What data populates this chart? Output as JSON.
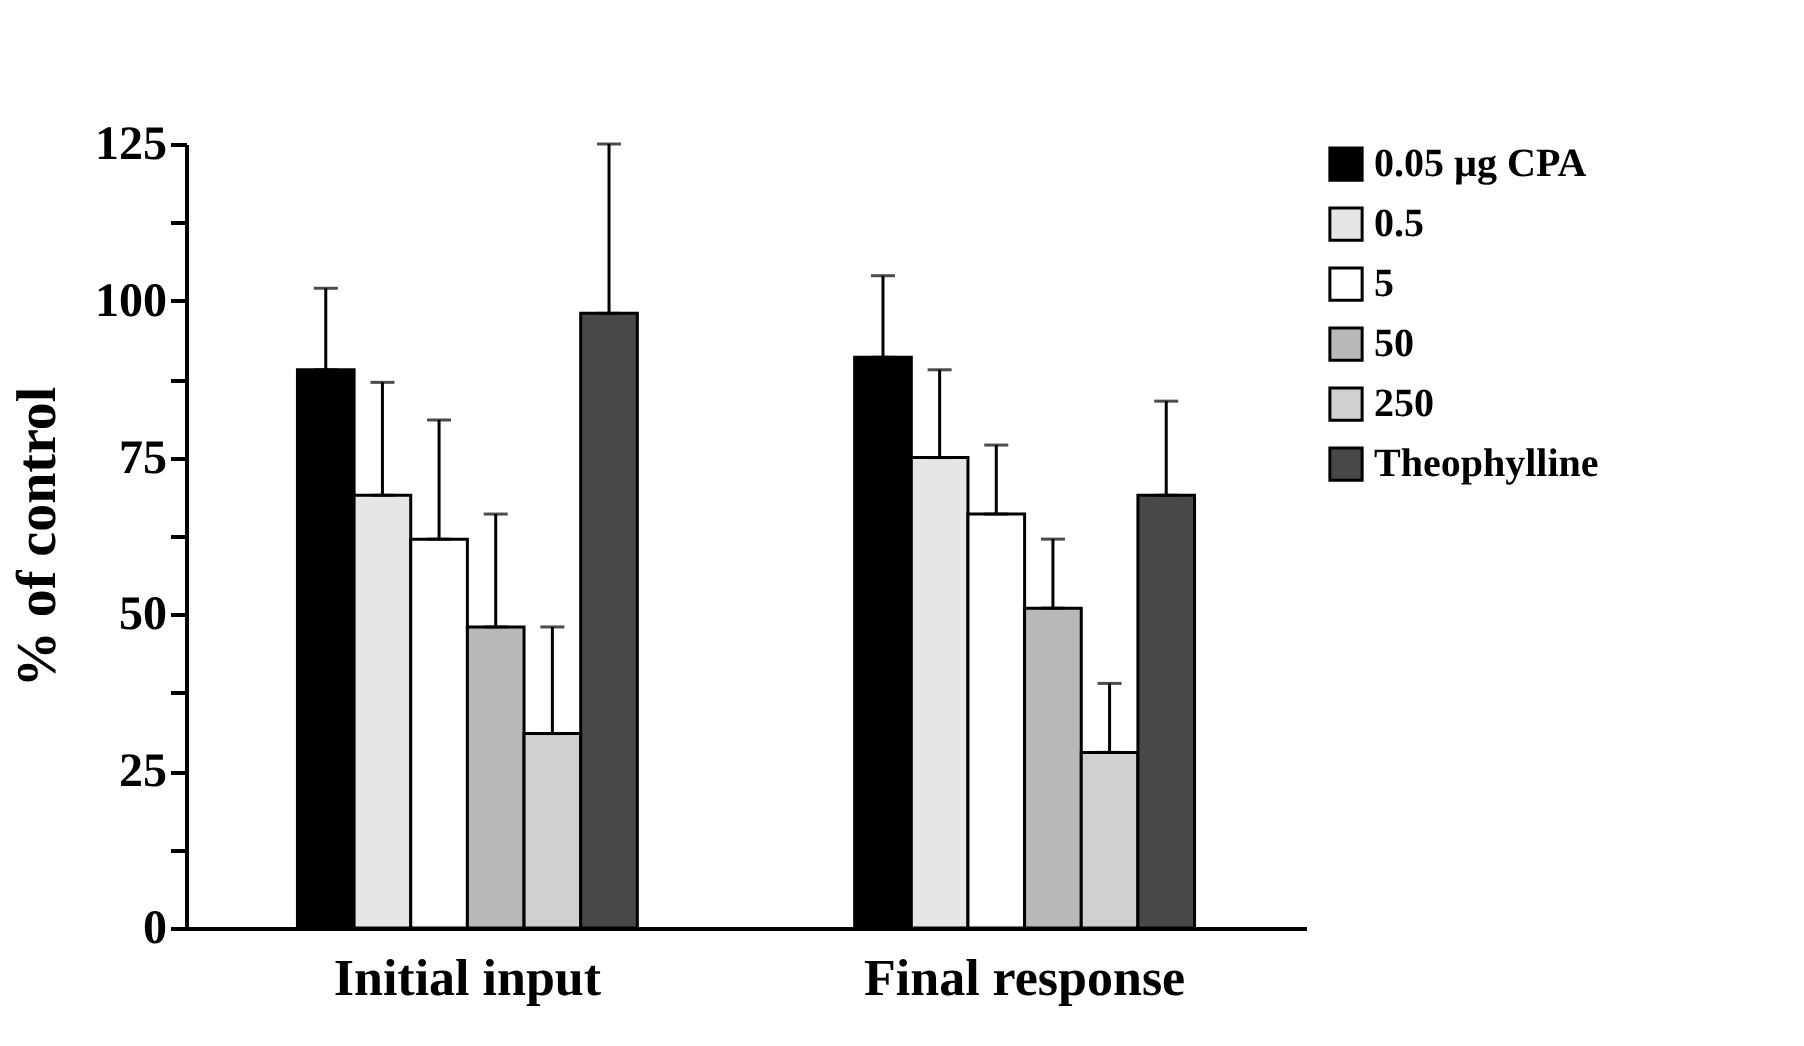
{
  "chart_data": {
    "type": "bar",
    "ylabel": "% of control",
    "categories": [
      "Initial input",
      "Final response"
    ],
    "series": [
      {
        "name": "0.05 µg CPA",
        "color": "#000000",
        "values": [
          89,
          91
        ],
        "errors": [
          [
            89,
            102
          ],
          [
            91,
            104
          ]
        ]
      },
      {
        "name": "0.5",
        "color": "#e6e6e6",
        "values": [
          69,
          75
        ],
        "errors": [
          [
            69,
            87
          ],
          [
            75,
            89
          ]
        ]
      },
      {
        "name": "5",
        "color": "#ffffff",
        "values": [
          62,
          66
        ],
        "errors": [
          [
            62,
            81
          ],
          [
            66,
            77
          ]
        ]
      },
      {
        "name": "50",
        "color": "#b8b8b8",
        "values": [
          48,
          51
        ],
        "errors": [
          [
            48,
            66
          ],
          [
            51,
            62
          ]
        ]
      },
      {
        "name": "250",
        "color": "#d0d0d0",
        "values": [
          31,
          28
        ],
        "errors": [
          [
            31,
            48
          ],
          [
            28,
            39
          ]
        ]
      },
      {
        "name": "Theophylline",
        "color": "#484848",
        "values": [
          98,
          69
        ],
        "errors": [
          [
            98,
            125
          ],
          [
            69,
            84
          ]
        ]
      }
    ],
    "ylim": [
      0,
      125
    ],
    "yticks": [
      0,
      {
        "value": 12.5,
        "label": null
      },
      25,
      {
        "value": 37.5,
        "label": null
      },
      50,
      {
        "value": 62.5,
        "label": null
      },
      75,
      {
        "value": 87.5,
        "label": null
      },
      100,
      {
        "value": 112.5,
        "label": null
      },
      125
    ],
    "grid": false,
    "legend": "top right"
  }
}
